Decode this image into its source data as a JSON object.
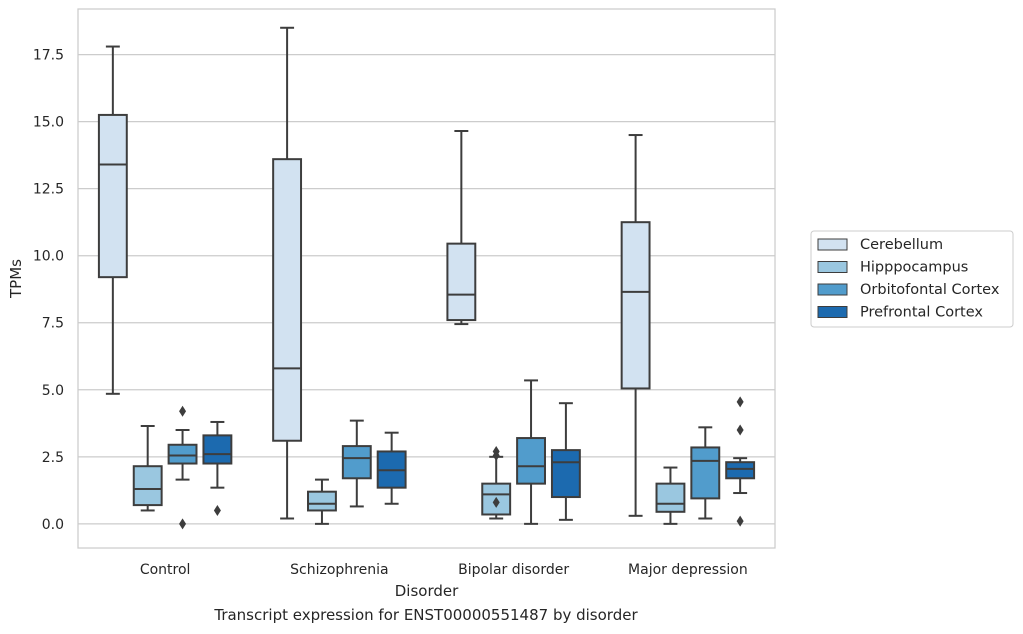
{
  "caption": "Transcript expression for ENST00000551487 by disorder",
  "chart_data": {
    "type": "box",
    "xlabel": "Disorder",
    "ylabel": "TPMs",
    "ylim": [
      -0.9,
      19.2
    ],
    "yticks": [
      0.0,
      2.5,
      5.0,
      7.5,
      10.0,
      12.5,
      15.0,
      17.5
    ],
    "ytick_labels": [
      "0.0",
      "2.5",
      "5.0",
      "7.5",
      "10.0",
      "12.5",
      "15.0",
      "17.5"
    ],
    "grid": "y-major",
    "legend_position": "right",
    "categories": [
      "Control",
      "Schizophrenia",
      "Bipolar disorder",
      "Major depression"
    ],
    "series": [
      {
        "name": "Cerebellum",
        "color": "#d2e2f1",
        "boxes": [
          {
            "whislo": 4.85,
            "q1": 9.2,
            "med": 13.4,
            "q3": 15.25,
            "whishi": 17.8,
            "fliers": []
          },
          {
            "whislo": 0.2,
            "q1": 3.1,
            "med": 5.8,
            "q3": 13.6,
            "whishi": 18.5,
            "fliers": []
          },
          {
            "whislo": 7.45,
            "q1": 7.6,
            "med": 8.55,
            "q3": 10.45,
            "whishi": 14.65,
            "fliers": []
          },
          {
            "whislo": 0.3,
            "q1": 5.05,
            "med": 8.65,
            "q3": 11.25,
            "whishi": 14.5,
            "fliers": []
          }
        ]
      },
      {
        "name": "Hipppocampus",
        "color": "#9ac7e0",
        "boxes": [
          {
            "whislo": 0.5,
            "q1": 0.7,
            "med": 1.3,
            "q3": 2.15,
            "whishi": 3.65,
            "fliers": []
          },
          {
            "whislo": 0.0,
            "q1": 0.5,
            "med": 0.75,
            "q3": 1.2,
            "whishi": 1.65,
            "fliers": []
          },
          {
            "whislo": 0.2,
            "q1": 0.35,
            "med": 1.1,
            "q3": 1.5,
            "whishi": 2.5,
            "fliers": [
              0.8,
              2.55,
              2.7
            ]
          },
          {
            "whislo": 0.0,
            "q1": 0.45,
            "med": 0.75,
            "q3": 1.5,
            "whishi": 2.1,
            "fliers": []
          }
        ]
      },
      {
        "name": "Orbitofontal Cortex",
        "color": "#519ccc",
        "boxes": [
          {
            "whislo": 1.65,
            "q1": 2.25,
            "med": 2.55,
            "q3": 2.95,
            "whishi": 3.5,
            "fliers": [
              0.0,
              4.2
            ]
          },
          {
            "whislo": 0.65,
            "q1": 1.7,
            "med": 2.45,
            "q3": 2.9,
            "whishi": 3.85,
            "fliers": []
          },
          {
            "whislo": 0.0,
            "q1": 1.5,
            "med": 2.15,
            "q3": 3.2,
            "whishi": 5.35,
            "fliers": []
          },
          {
            "whislo": 0.2,
            "q1": 0.95,
            "med": 2.35,
            "q3": 2.85,
            "whishi": 3.6,
            "fliers": []
          }
        ]
      },
      {
        "name": "Prefrontal Cortex",
        "color": "#1c6aaf",
        "boxes": [
          {
            "whislo": 1.35,
            "q1": 2.25,
            "med": 2.6,
            "q3": 3.3,
            "whishi": 3.8,
            "fliers": [
              0.5
            ]
          },
          {
            "whislo": 0.75,
            "q1": 1.35,
            "med": 2.0,
            "q3": 2.7,
            "whishi": 3.4,
            "fliers": []
          },
          {
            "whislo": 0.15,
            "q1": 1.0,
            "med": 2.3,
            "q3": 2.75,
            "whishi": 4.5,
            "fliers": []
          },
          {
            "whislo": 1.15,
            "q1": 1.7,
            "med": 2.05,
            "q3": 2.3,
            "whishi": 2.45,
            "fliers": [
              0.1,
              3.5,
              4.55
            ]
          }
        ]
      }
    ]
  }
}
